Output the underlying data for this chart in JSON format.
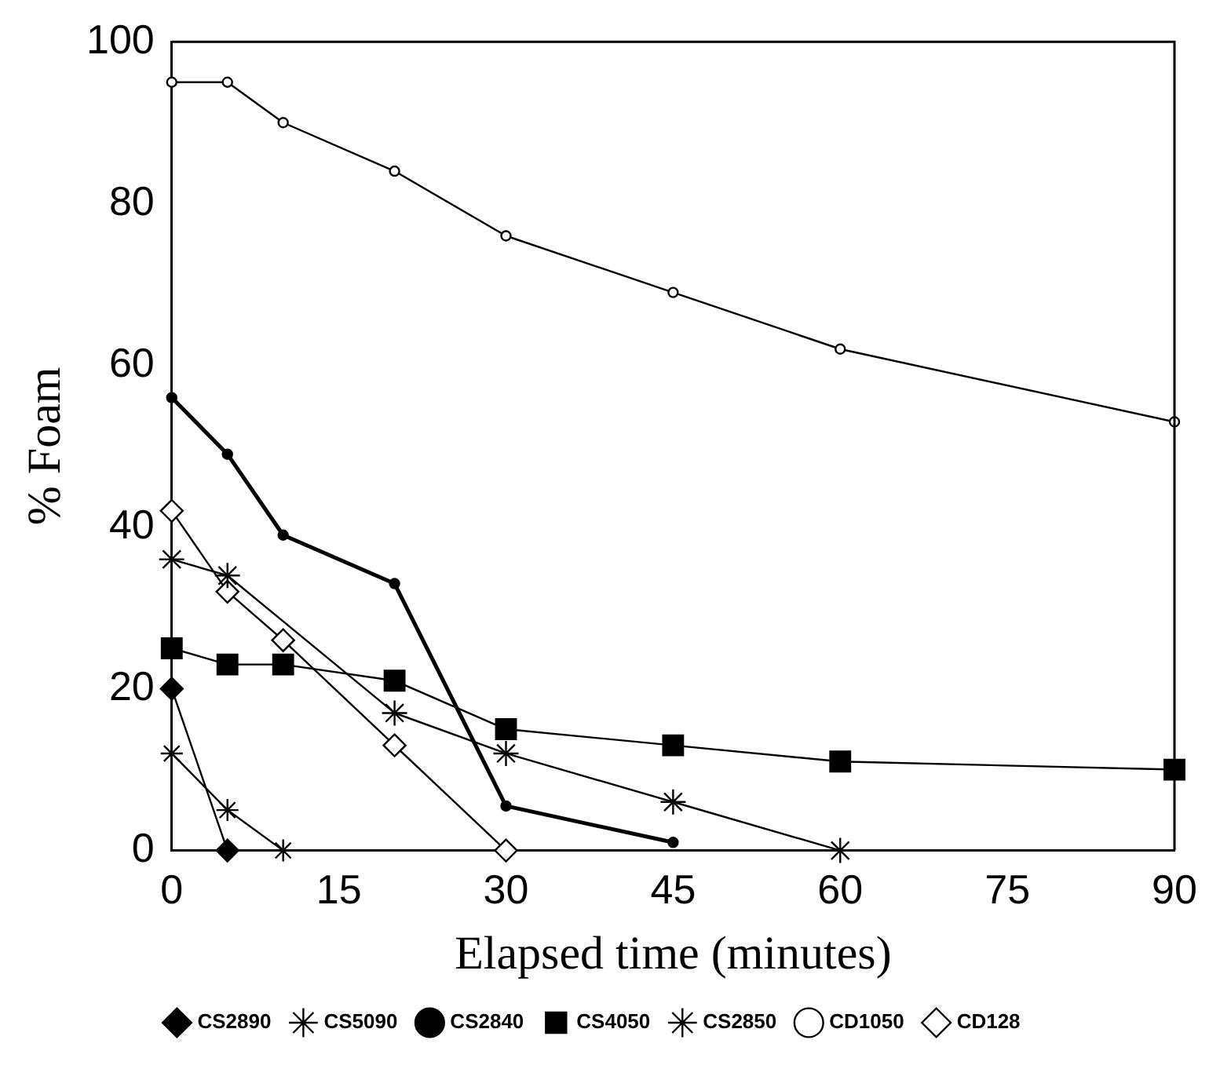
{
  "chart_data": {
    "type": "line",
    "xlabel": "Elapsed time (minutes)",
    "ylabel": "% Foam",
    "xlim": [
      0,
      90
    ],
    "xticks": [
      0,
      15,
      30,
      45,
      60,
      75,
      90
    ],
    "ylim": [
      0,
      100
    ],
    "yticks": [
      0,
      20,
      40,
      60,
      80,
      100
    ],
    "grid": false,
    "legend": "bottom",
    "line_style": "solid",
    "series": [
      {
        "name": "CS2890",
        "color": "#000000",
        "marker": "diamond",
        "x": [
          0,
          5
        ],
        "values": [
          20,
          0
        ]
      },
      {
        "name": "CS5090",
        "color": "#000000",
        "marker": "cross",
        "x": [
          0,
          5,
          10
        ],
        "values": [
          12,
          5,
          0
        ]
      },
      {
        "name": "CS2840",
        "color": "#000000",
        "marker": "circle",
        "x": [
          0,
          5,
          10,
          20,
          30,
          45
        ],
        "values": [
          56,
          49,
          39,
          33,
          5.5,
          1
        ]
      },
      {
        "name": "CS4050",
        "color": "#000000",
        "marker": "square",
        "x": [
          0,
          5,
          10,
          20,
          30,
          45,
          60,
          90
        ],
        "values": [
          25,
          23,
          23,
          21,
          15,
          13,
          11,
          10
        ]
      },
      {
        "name": "CS2850",
        "color": "#000000",
        "marker": "cross",
        "x": [
          0,
          5,
          20,
          30,
          45,
          60
        ],
        "values": [
          36,
          34,
          17,
          12,
          6,
          0
        ]
      },
      {
        "name": "CD1050",
        "color": "#000000",
        "marker": "circle",
        "x": [
          0,
          5,
          10,
          20,
          30,
          45,
          60,
          90
        ],
        "values": [
          95,
          95,
          90,
          84,
          76,
          69,
          62,
          53
        ]
      },
      {
        "name": "CD128",
        "color": "#000000",
        "marker": "diamond",
        "x": [
          0,
          5,
          10,
          20,
          30
        ],
        "values": [
          42,
          32,
          26,
          13,
          0
        ]
      }
    ]
  }
}
